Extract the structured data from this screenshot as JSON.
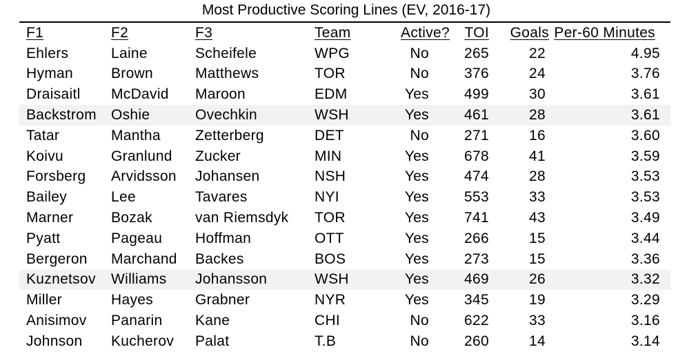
{
  "title": "Most Productive Scoring Lines (EV, 2016-17)",
  "colors": {
    "shaded_row": "#f2f2f2",
    "text": "#000000"
  },
  "columns": [
    "F1",
    "F2",
    "F3",
    "Team",
    "Active?",
    "TOI",
    "Goals",
    "Per-60 Minutes"
  ],
  "rows": [
    {
      "f1": "Ehlers",
      "f2": "Laine",
      "f3": "Scheifele",
      "team": "WPG",
      "active": "No",
      "toi": "265",
      "goals": "22",
      "per60": "4.95",
      "shaded": false
    },
    {
      "f1": "Hyman",
      "f2": "Brown",
      "f3": "Matthews",
      "team": "TOR",
      "active": "No",
      "toi": "376",
      "goals": "24",
      "per60": "3.76",
      "shaded": false
    },
    {
      "f1": "Draisaitl",
      "f2": "McDavid",
      "f3": "Maroon",
      "team": "EDM",
      "active": "Yes",
      "toi": "499",
      "goals": "30",
      "per60": "3.61",
      "shaded": false
    },
    {
      "f1": "Backstrom",
      "f2": "Oshie",
      "f3": "Ovechkin",
      "team": "WSH",
      "active": "Yes",
      "toi": "461",
      "goals": "28",
      "per60": "3.61",
      "shaded": true
    },
    {
      "f1": "Tatar",
      "f2": "Mantha",
      "f3": "Zetterberg",
      "team": "DET",
      "active": "No",
      "toi": "271",
      "goals": "16",
      "per60": "3.60",
      "shaded": false
    },
    {
      "f1": "Koivu",
      "f2": "Granlund",
      "f3": "Zucker",
      "team": "MIN",
      "active": "Yes",
      "toi": "678",
      "goals": "41",
      "per60": "3.59",
      "shaded": false
    },
    {
      "f1": "Forsberg",
      "f2": "Arvidsson",
      "f3": "Johansen",
      "team": "NSH",
      "active": "Yes",
      "toi": "474",
      "goals": "28",
      "per60": "3.53",
      "shaded": false
    },
    {
      "f1": "Bailey",
      "f2": "Lee",
      "f3": "Tavares",
      "team": "NYI",
      "active": "Yes",
      "toi": "553",
      "goals": "33",
      "per60": "3.53",
      "shaded": false
    },
    {
      "f1": "Marner",
      "f2": "Bozak",
      "f3": "van Riemsdyk",
      "team": "TOR",
      "active": "Yes",
      "toi": "741",
      "goals": "43",
      "per60": "3.49",
      "shaded": false
    },
    {
      "f1": "Pyatt",
      "f2": "Pageau",
      "f3": "Hoffman",
      "team": "OTT",
      "active": "Yes",
      "toi": "266",
      "goals": "15",
      "per60": "3.44",
      "shaded": false
    },
    {
      "f1": "Bergeron",
      "f2": "Marchand",
      "f3": "Backes",
      "team": "BOS",
      "active": "Yes",
      "toi": "273",
      "goals": "15",
      "per60": "3.36",
      "shaded": false
    },
    {
      "f1": "Kuznetsov",
      "f2": "Williams",
      "f3": "Johansson",
      "team": "WSH",
      "active": "Yes",
      "toi": "469",
      "goals": "26",
      "per60": "3.32",
      "shaded": true
    },
    {
      "f1": "Miller",
      "f2": "Hayes",
      "f3": "Grabner",
      "team": "NYR",
      "active": "Yes",
      "toi": "345",
      "goals": "19",
      "per60": "3.29",
      "shaded": false
    },
    {
      "f1": "Anisimov",
      "f2": "Panarin",
      "f3": "Kane",
      "team": "CHI",
      "active": "No",
      "toi": "622",
      "goals": "33",
      "per60": "3.16",
      "shaded": false
    },
    {
      "f1": "Johnson",
      "f2": "Kucherov",
      "f3": "Palat",
      "team": "T.B",
      "active": "No",
      "toi": "260",
      "goals": "14",
      "per60": "3.14",
      "shaded": false
    }
  ]
}
